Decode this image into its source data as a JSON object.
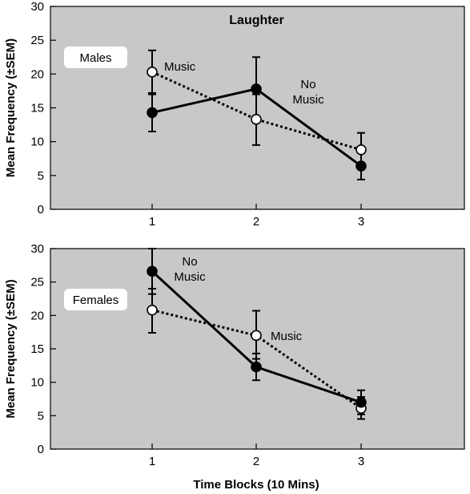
{
  "chart_data": [
    {
      "type": "line",
      "title": "Laughter",
      "panel_label": "Males",
      "xlabel": "",
      "ylabel": "Mean Frequency (±SEM)",
      "categories": [
        "1",
        "2",
        "3"
      ],
      "ylim": [
        0,
        30
      ],
      "yticks": [
        "0",
        "5",
        "10",
        "15",
        "20",
        "25",
        "30"
      ],
      "grid": false,
      "background": "#c8c8c8",
      "series": [
        {
          "name": "Music",
          "style": "dotted",
          "marker": "open",
          "values": [
            20.3,
            13.3,
            8.8
          ],
          "err_low": [
            17.2,
            9.5,
            6.3
          ],
          "err_high": [
            23.5,
            17.0,
            11.3
          ]
        },
        {
          "name": "No Music",
          "style": "solid",
          "marker": "filled",
          "values": [
            14.3,
            17.8,
            6.4
          ],
          "err_low": [
            11.5,
            13.2,
            4.4
          ],
          "err_high": [
            17.0,
            22.5,
            8.5
          ]
        }
      ]
    },
    {
      "type": "line",
      "title": "",
      "panel_label": "Females",
      "xlabel": "Time Blocks (10 Mins)",
      "ylabel": "Mean Frequency (±SEM)",
      "categories": [
        "1",
        "2",
        "3"
      ],
      "ylim": [
        0,
        30
      ],
      "yticks": [
        "0",
        "5",
        "10",
        "15",
        "20",
        "25",
        "30"
      ],
      "grid": false,
      "background": "#c8c8c8",
      "series": [
        {
          "name": "Music",
          "style": "dotted",
          "marker": "open",
          "values": [
            20.8,
            17.0,
            6.1
          ],
          "err_low": [
            17.4,
            13.5,
            4.5
          ],
          "err_high": [
            24.0,
            20.7,
            7.8
          ]
        },
        {
          "name": "No Music",
          "style": "solid",
          "marker": "filled",
          "values": [
            26.6,
            12.3,
            7.0
          ],
          "err_low": [
            23.2,
            10.3,
            5.2
          ],
          "err_high": [
            30.0,
            14.3,
            8.8
          ]
        }
      ]
    }
  ]
}
